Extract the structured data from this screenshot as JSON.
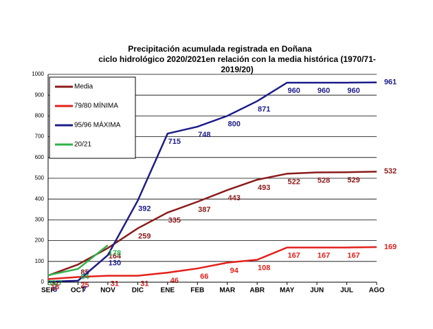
{
  "chart_data": {
    "type": "line",
    "title": [
      "Precipitación acumulada registrada en Doñana",
      "ciclo hidrológico 2020/2021en relación con la media histórica (1970/71-",
      "2019/20)"
    ],
    "categories": [
      "SEP",
      "OCT",
      "NOV",
      "DIC",
      "ENE",
      "FEB",
      "MAR",
      "ABR",
      "MAY",
      "JUN",
      "JUL",
      "AGO"
    ],
    "series": [
      {
        "name": "Media",
        "color": "#8b1a1a",
        "values": [
          32,
          85,
          164,
          259,
          335,
          387,
          443,
          493,
          522,
          528,
          529,
          532
        ]
      },
      {
        "name": "79/80 MÍNIMA",
        "color": "#e3201b",
        "values": [
          15,
          25,
          31,
          31,
          46,
          66,
          94,
          108,
          167,
          167,
          167,
          169
        ]
      },
      {
        "name": "95/96 MÁXIMA",
        "color": "#1c1c8a",
        "values": [
          3,
          7,
          130,
          392,
          715,
          748,
          800,
          871,
          960,
          960,
          960,
          961
        ]
      },
      {
        "name": "20/21",
        "color": "#2eb34a",
        "values": [
          33.7,
          64,
          178,
          null,
          null,
          null,
          null,
          null,
          null,
          null,
          null,
          null
        ]
      }
    ],
    "ylim": [
      0,
      1000
    ],
    "yticks": [
      0,
      100,
      200,
      300,
      400,
      500,
      600,
      700,
      800,
      900,
      1000
    ],
    "grid": true,
    "legend": "top-left"
  }
}
